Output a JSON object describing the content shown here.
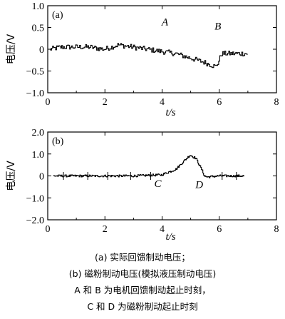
{
  "chart_data": [
    {
      "type": "line",
      "panel_label": "(a)",
      "xlabel": "t/s",
      "ylabel": "电压/V",
      "xlim": [
        0,
        8
      ],
      "ylim": [
        -1.0,
        1.0
      ],
      "xticks": [
        0,
        2,
        4,
        6,
        8
      ],
      "yticks": [
        -1.0,
        -0.5,
        0,
        0.5,
        1.0
      ],
      "ytick_labels": [
        "−1.0",
        "−0.5",
        "0",
        "0.5",
        "1.0"
      ],
      "annotations": [
        {
          "text": "A",
          "x": 4.1,
          "y": 0.55
        },
        {
          "text": "B",
          "x": 5.95,
          "y": 0.45
        }
      ],
      "series": [
        {
          "x": [
            0.1,
            0.5,
            1.0,
            1.5,
            2.0,
            2.5,
            3.0,
            3.5,
            4.0,
            4.5,
            5.0,
            5.5,
            5.9,
            6.0,
            6.1,
            6.5,
            7.0
          ],
          "y": [
            0.0,
            0.05,
            0.05,
            0.05,
            0.0,
            0.1,
            0.05,
            0.0,
            -0.05,
            -0.1,
            -0.2,
            -0.3,
            -0.4,
            -0.3,
            -0.1,
            -0.1,
            -0.1
          ]
        }
      ]
    },
    {
      "type": "line",
      "panel_label": "(b)",
      "xlabel": "t/s",
      "ylabel": "电压/V",
      "xlim": [
        0,
        8
      ],
      "ylim": [
        -2.0,
        2.0
      ],
      "xticks": [
        0,
        2,
        4,
        6,
        8
      ],
      "yticks": [
        -2.0,
        -1.0,
        0,
        1.0,
        2.0
      ],
      "ytick_labels": [
        "−2.0",
        "−1.0",
        "0",
        "1.0",
        "2.0"
      ],
      "annotations": [
        {
          "text": "C",
          "x": 3.85,
          "y": -0.5
        },
        {
          "text": "D",
          "x": 5.3,
          "y": -0.55
        }
      ],
      "series": [
        {
          "x": [
            0.2,
            1.0,
            2.0,
            3.0,
            4.0,
            4.5,
            4.8,
            5.0,
            5.2,
            5.4,
            5.5,
            5.6,
            6.0,
            6.5,
            6.9
          ],
          "y": [
            0.0,
            0.0,
            0.0,
            0.0,
            0.05,
            0.3,
            0.7,
            0.95,
            0.8,
            0.3,
            0.0,
            -0.05,
            0.0,
            0.0,
            0.0
          ]
        }
      ]
    }
  ],
  "caption": {
    "line1": "(a) 实际回馈制动电压；",
    "line2": "(b) 磁粉制动电压(模拟液压制动电压)",
    "line3": "A 和 B 为电机回馈制动起止时刻，",
    "line4": "C 和 D 为磁粉制动起止时刻"
  }
}
